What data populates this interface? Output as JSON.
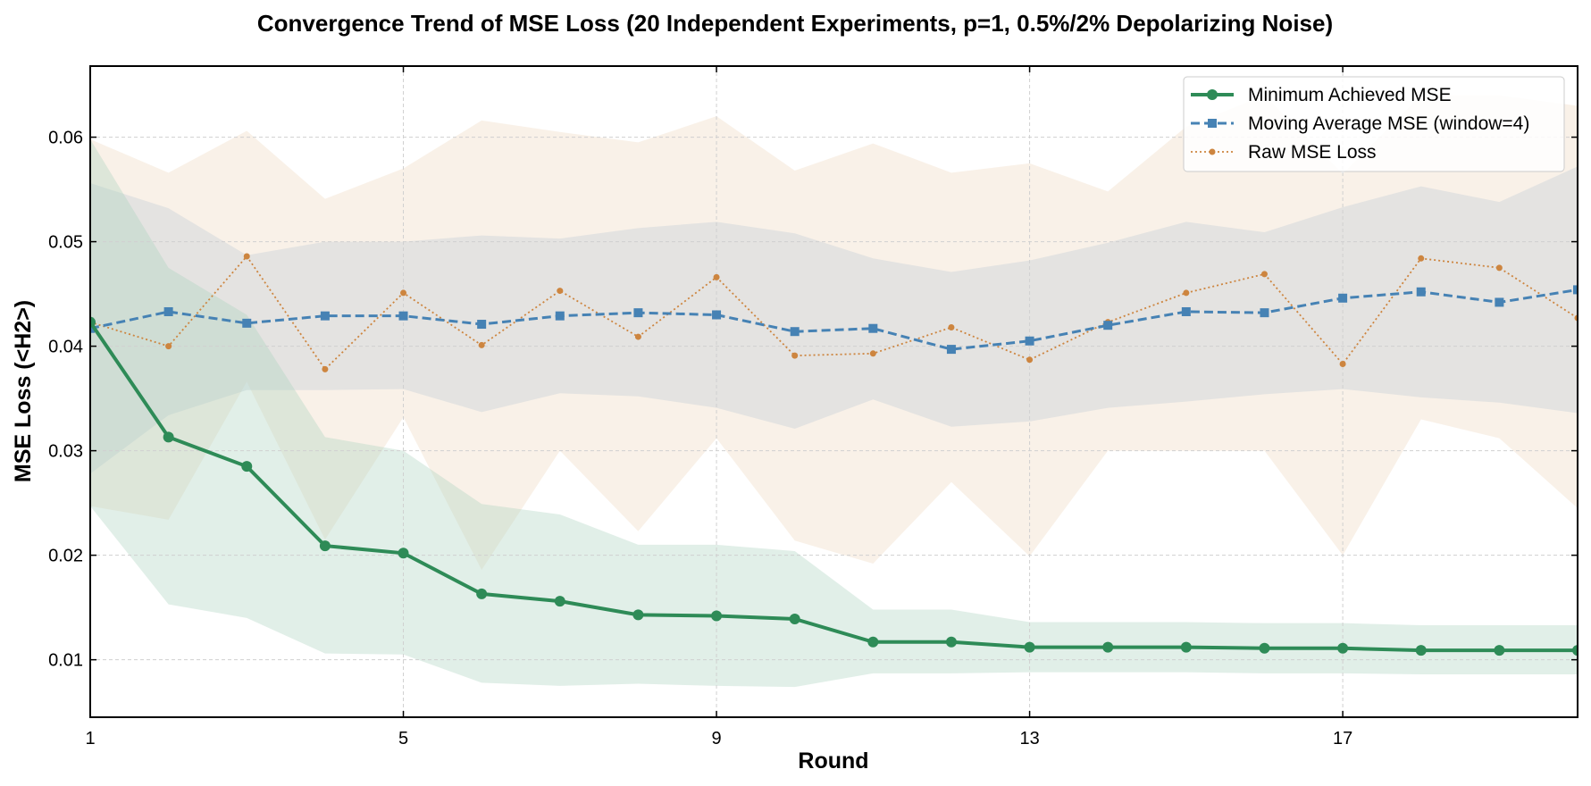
{
  "chart_data": {
    "type": "line",
    "title": "Convergence Trend of MSE Loss (20 Independent Experiments, p=1, 0.5%/2% Depolarizing Noise)",
    "xlabel": "Round",
    "ylabel": "MSE Loss (<H2>)",
    "xlim": [
      1,
      20
    ],
    "ylim": [
      0.0045,
      0.0668
    ],
    "xticks": [
      1,
      5,
      9,
      13,
      17
    ],
    "xtick_labels": [
      "1",
      "5",
      "9",
      "13",
      "17"
    ],
    "yticks": [
      0.01,
      0.02,
      0.03,
      0.04,
      0.05,
      0.06
    ],
    "ytick_labels": [
      "0.01",
      "0.02",
      "0.03",
      "0.04",
      "0.05",
      "0.06"
    ],
    "grid": true,
    "legend_position": "top-right",
    "x": [
      1,
      2,
      3,
      4,
      5,
      6,
      7,
      8,
      9,
      10,
      11,
      12,
      13,
      14,
      15,
      16,
      17,
      18,
      19,
      20
    ],
    "series": [
      {
        "name": "Minimum Achieved MSE",
        "color": "#2e8b57",
        "style": "solid-circle",
        "values": [
          0.0423,
          0.0313,
          0.0285,
          0.0209,
          0.0202,
          0.0163,
          0.0156,
          0.0143,
          0.0142,
          0.0139,
          0.0117,
          0.0117,
          0.0112,
          0.0112,
          0.0112,
          0.0111,
          0.0111,
          0.0109,
          0.0109,
          0.0109
        ],
        "band_upper": [
          0.0598,
          0.0475,
          0.043,
          0.0313,
          0.03,
          0.0249,
          0.0239,
          0.021,
          0.021,
          0.0204,
          0.0148,
          0.0148,
          0.0136,
          0.0136,
          0.0136,
          0.0135,
          0.0135,
          0.0133,
          0.0133,
          0.0133
        ],
        "band_lower": [
          0.0247,
          0.0153,
          0.014,
          0.0106,
          0.0105,
          0.0078,
          0.0075,
          0.0077,
          0.0075,
          0.0074,
          0.0087,
          0.0087,
          0.0088,
          0.0088,
          0.0088,
          0.0087,
          0.0087,
          0.0086,
          0.0086,
          0.0086
        ]
      },
      {
        "name": "Moving Average MSE (window=4)",
        "color": "#4682b4",
        "style": "dashed-square",
        "values": [
          0.0417,
          0.0433,
          0.0422,
          0.0429,
          0.0429,
          0.0421,
          0.0429,
          0.0432,
          0.043,
          0.0414,
          0.0417,
          0.0397,
          0.0405,
          0.042,
          0.0433,
          0.0432,
          0.0446,
          0.0452,
          0.0442,
          0.0454
        ],
        "band_upper": [
          0.0556,
          0.0532,
          0.0487,
          0.05,
          0.05,
          0.0506,
          0.0503,
          0.0513,
          0.0519,
          0.0508,
          0.0484,
          0.0471,
          0.0482,
          0.0499,
          0.0519,
          0.0509,
          0.0533,
          0.0553,
          0.0538,
          0.0572
        ],
        "band_lower": [
          0.0278,
          0.0334,
          0.0358,
          0.0358,
          0.0359,
          0.0337,
          0.0355,
          0.0352,
          0.0341,
          0.0321,
          0.0349,
          0.0323,
          0.0328,
          0.0341,
          0.0347,
          0.0354,
          0.0359,
          0.0351,
          0.0346,
          0.0336
        ]
      },
      {
        "name": "Raw MSE Loss",
        "color": "#cd853f",
        "style": "dotted-small-circle",
        "values": [
          0.0423,
          0.04,
          0.0486,
          0.0378,
          0.0451,
          0.0401,
          0.0453,
          0.0409,
          0.0466,
          0.0391,
          0.0393,
          0.0418,
          0.0387,
          0.0423,
          0.0451,
          0.0469,
          0.0383,
          0.0484,
          0.0475,
          0.0427
        ],
        "band_upper": [
          0.0598,
          0.0566,
          0.0606,
          0.0541,
          0.057,
          0.0616,
          0.0605,
          0.0595,
          0.062,
          0.0568,
          0.0594,
          0.0566,
          0.0575,
          0.0548,
          0.061,
          0.064,
          0.0565,
          0.064,
          0.064,
          0.063
        ],
        "band_lower": [
          0.0247,
          0.0234,
          0.0366,
          0.0215,
          0.0332,
          0.0186,
          0.03,
          0.0223,
          0.0312,
          0.0214,
          0.0192,
          0.027,
          0.0199,
          0.03,
          0.03,
          0.03,
          0.02,
          0.033,
          0.0312,
          0.0245
        ]
      }
    ]
  }
}
